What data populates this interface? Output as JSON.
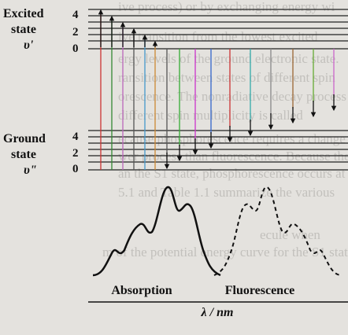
{
  "upper_state": {
    "label_lines": [
      "Excited",
      "state",
      "υ'"
    ],
    "levels": [
      "4",
      "2",
      "0"
    ]
  },
  "lower_state": {
    "label_lines": [
      "Ground",
      "state",
      "υ\""
    ],
    "levels": [
      "4",
      "2",
      "0"
    ]
  },
  "spectra": {
    "absorption": "Absorption",
    "fluorescence": "Fluorescence",
    "axis_label": "λ / nm"
  },
  "background_text": [
    "ive process) or by exchanging energy wi",
    "ive transition from the lowest excited",
    "ergy levels of the ground electronic state.",
    "ransition between states of different spin",
    "orescence. The nonradiative decay process",
    "different spin multiplicity is called",
    "ecause phosphorescence requires a change",
    "wer process than fluorescence. Because the",
    "an the S1 state, phosphorescence occurs at",
    "5.1 and Table 1.1 summarize the various",
    "ecule when",
    "m of the potential energy curve for the S1 state"
  ]
}
